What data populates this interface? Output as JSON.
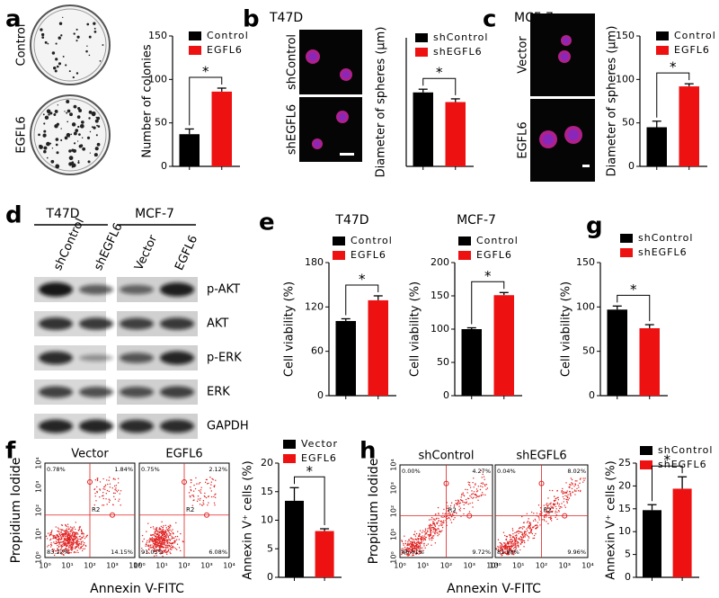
{
  "letters": [
    "a",
    "b",
    "c",
    "d",
    "e",
    "g",
    "f",
    "h"
  ],
  "images": {
    "a": {
      "labels": [
        "Control",
        "EGFL6"
      ]
    },
    "b": {
      "title": "T47D",
      "labels": [
        "shControl",
        "shEGFL6"
      ]
    },
    "c": {
      "title": "MCF-7",
      "labels": [
        "Vector",
        "EGFL6"
      ]
    }
  },
  "blot": {
    "groups": [
      "T47D",
      "MCF-7"
    ],
    "lanes": [
      "shControl",
      "shEGFL6",
      "Vector",
      "EGFL6"
    ],
    "rows": [
      "p-AKT",
      "AKT",
      "p-ERK",
      "ERK",
      "GAPDH"
    ]
  },
  "flow": [
    {
      "ylabel": "Propidium Iodide",
      "xlabel": "Annexin V-FITC",
      "gate": "R2",
      "ticks": [
        "10⁰",
        "10¹",
        "10²",
        "10³",
        "10⁴"
      ],
      "plots": [
        {
          "title": "Vector",
          "quadrants": [
            "0.78%",
            "1.84%",
            "83.22%",
            "14.15%"
          ]
        },
        {
          "title": "EGFL6",
          "quadrants": [
            "0.75%",
            "2.12%",
            "91.05%",
            "6.08%"
          ]
        }
      ]
    },
    {
      "ylabel": "Propidium Iodide",
      "xlabel": "Annexin V-FITC",
      "gate": "R2",
      "ticks": [
        "10⁰",
        "10¹",
        "10²",
        "10³",
        "10⁴"
      ],
      "plots": [
        {
          "title": "shControl",
          "quadrants": [
            "0.00%",
            "4.27%",
            "86.01%",
            "9.72%"
          ]
        },
        {
          "title": "shEGFL6",
          "quadrants": [
            "0.04%",
            "8.02%",
            "81.98%",
            "9.96%"
          ]
        }
      ]
    }
  ],
  "chart_data": [
    {
      "type": "bar",
      "ylabel": "Number of colonies",
      "ylim": [
        0,
        150
      ],
      "yticks": [
        0,
        50,
        100,
        150
      ],
      "annotation": "*",
      "series": [
        {
          "name": "Control",
          "color": "#000000",
          "values": [
            37
          ],
          "errors": [
            6
          ]
        },
        {
          "name": "EGFL6",
          "color": "#ee1111",
          "values": [
            86
          ],
          "errors": [
            4
          ]
        }
      ]
    },
    {
      "type": "bar",
      "ylabel": "Diameter of spheres (μm)",
      "ylim": [
        0,
        80
      ],
      "annotation": "*",
      "series": [
        {
          "name": "shControl",
          "color": "#000000",
          "values": [
            46
          ],
          "errors": [
            2
          ]
        },
        {
          "name": "shEGFL6",
          "color": "#ee1111",
          "values": [
            40
          ],
          "errors": [
            2
          ]
        }
      ]
    },
    {
      "type": "bar",
      "ylabel": "Diameter of spheres (μm)",
      "ylim": [
        0,
        150
      ],
      "yticks": [
        0,
        50,
        100,
        150
      ],
      "annotation": "*",
      "series": [
        {
          "name": "Control",
          "color": "#000000",
          "values": [
            45
          ],
          "errors": [
            7
          ]
        },
        {
          "name": "EGFL6",
          "color": "#ee1111",
          "values": [
            92
          ],
          "errors": [
            3
          ]
        }
      ]
    },
    {
      "type": "bar",
      "title": "T47D",
      "ylabel": "Cell viability (%)",
      "ylim": [
        0,
        180
      ],
      "yticks": [
        0,
        60,
        120,
        180
      ],
      "annotation": "*",
      "series": [
        {
          "name": "Control",
          "color": "#000000",
          "values": [
            101
          ],
          "errors": [
            3
          ]
        },
        {
          "name": "EGFL6",
          "color": "#ee1111",
          "values": [
            129
          ],
          "errors": [
            6
          ]
        }
      ]
    },
    {
      "type": "bar",
      "title": "MCF-7",
      "ylabel": "Cell viability (%)",
      "ylim": [
        0,
        200
      ],
      "yticks": [
        0,
        50,
        100,
        150,
        200
      ],
      "annotation": "*",
      "series": [
        {
          "name": "Control",
          "color": "#000000",
          "values": [
            100
          ],
          "errors": [
            2
          ]
        },
        {
          "name": "EGFL6",
          "color": "#ee1111",
          "values": [
            151
          ],
          "errors": [
            4
          ]
        }
      ]
    },
    {
      "type": "bar",
      "ylabel": "Cell viability (%)",
      "ylim": [
        0,
        150
      ],
      "yticks": [
        0,
        50,
        100,
        150
      ],
      "annotation": "*",
      "series": [
        {
          "name": "shControl",
          "color": "#000000",
          "values": [
            97
          ],
          "errors": [
            4
          ]
        },
        {
          "name": "shEGFL6",
          "color": "#ee1111",
          "values": [
            76
          ],
          "errors": [
            4
          ]
        }
      ]
    },
    {
      "type": "bar",
      "ylabel": "Annexin V⁺ cells (%)",
      "ylim": [
        0,
        20
      ],
      "yticks": [
        0,
        5,
        10,
        15,
        20
      ],
      "annotation": "*",
      "series": [
        {
          "name": "Vector",
          "color": "#000000",
          "values": [
            13.4
          ],
          "errors": [
            2.3
          ]
        },
        {
          "name": "EGFL6",
          "color": "#ee1111",
          "values": [
            8.1
          ],
          "errors": [
            0.4
          ]
        }
      ]
    },
    {
      "type": "bar",
      "ylabel": "Annexin V⁺ cells (%)",
      "ylim": [
        0,
        25
      ],
      "yticks": [
        0,
        5,
        10,
        15,
        20,
        25
      ],
      "annotation": "*",
      "series": [
        {
          "name": "shControl",
          "color": "#000000",
          "values": [
            14.7
          ],
          "errors": [
            1.2
          ]
        },
        {
          "name": "shEGFL6",
          "color": "#ee1111",
          "values": [
            19.4
          ],
          "errors": [
            2.6
          ]
        }
      ]
    }
  ]
}
